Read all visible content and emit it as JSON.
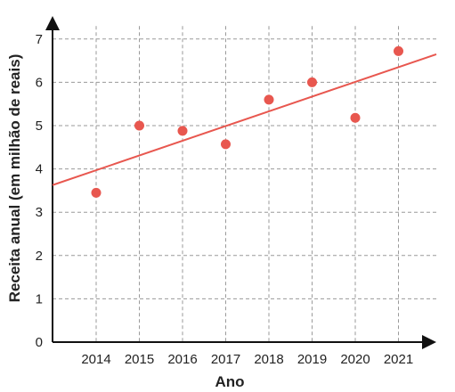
{
  "chart_data": {
    "type": "scatter",
    "xlabel": "Ano",
    "ylabel": "Receita anual (em milhão de reais)",
    "x_categories": [
      "2014",
      "2015",
      "2016",
      "2017",
      "2018",
      "2019",
      "2020",
      "2021"
    ],
    "y_ticks": [
      0,
      1,
      2,
      3,
      4,
      5,
      6,
      7
    ],
    "ylim": [
      0,
      7.3
    ],
    "grid": true,
    "points": [
      {
        "x": "2014",
        "y": 3.45
      },
      {
        "x": "2015",
        "y": 5.0
      },
      {
        "x": "2016",
        "y": 4.88
      },
      {
        "x": "2017",
        "y": 4.57
      },
      {
        "x": "2018",
        "y": 5.6
      },
      {
        "x": "2019",
        "y": 6.0
      },
      {
        "x": "2020",
        "y": 5.18
      },
      {
        "x": "2021",
        "y": 6.72
      }
    ],
    "trendline": {
      "slope": 0.34,
      "intercept_at_2014": 3.97
    },
    "colors": {
      "points": "#e8574f",
      "trendline": "#e8574f",
      "axis": "#111111",
      "grid": "#9a9a9a"
    }
  }
}
